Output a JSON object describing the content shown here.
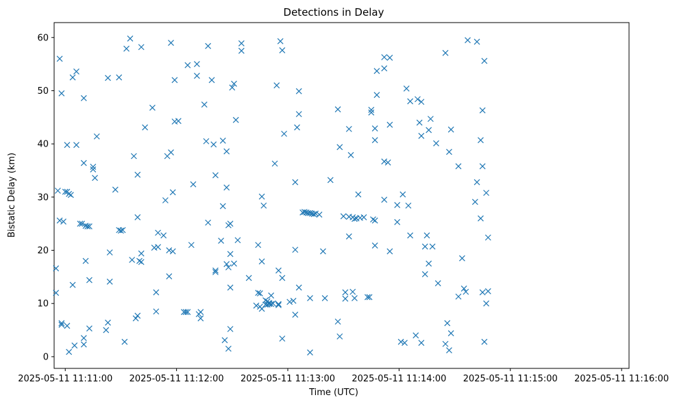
{
  "chart_data": {
    "type": "scatter",
    "title": "Detections in Delay",
    "xlabel": "Time (UTC)",
    "ylabel": "Bistatic Delay (km)",
    "marker": "x",
    "color": "#1f77b4",
    "grid": false,
    "xlim": [
      "2025-05-11 11:10:54",
      "2025-05-11 11:16:04"
    ],
    "ylim": [
      -2.2,
      62.8
    ],
    "x_ticks": [
      "2025-05-11 11:11:00",
      "2025-05-11 11:12:00",
      "2025-05-11 11:13:00",
      "2025-05-11 11:14:00",
      "2025-05-11 11:15:00",
      "2025-05-11 11:16:00"
    ],
    "y_ticks": [
      0,
      10,
      20,
      30,
      40,
      50,
      60
    ],
    "points": [
      [
        "2025-05-11 11:10:55",
        12.0
      ],
      [
        "2025-05-11 11:10:55",
        16.6
      ],
      [
        "2025-05-11 11:10:56",
        31.2
      ],
      [
        "2025-05-11 11:10:57",
        56.0
      ],
      [
        "2025-05-11 11:10:58",
        49.5
      ],
      [
        "2025-05-11 11:10:57",
        25.6
      ],
      [
        "2025-05-11 11:10:58",
        6.0
      ],
      [
        "2025-05-11 11:10:58",
        6.3
      ],
      [
        "2025-05-11 11:10:59",
        25.4
      ],
      [
        "2025-05-11 11:11:00",
        31.0
      ],
      [
        "2025-05-11 11:11:01",
        31.0
      ],
      [
        "2025-05-11 11:11:01",
        39.8
      ],
      [
        "2025-05-11 11:11:02",
        30.6
      ],
      [
        "2025-05-11 11:11:01",
        5.8
      ],
      [
        "2025-05-11 11:11:02",
        0.9
      ],
      [
        "2025-05-11 11:11:03",
        30.4
      ],
      [
        "2025-05-11 11:11:04",
        13.5
      ],
      [
        "2025-05-11 11:11:04",
        52.5
      ],
      [
        "2025-05-11 11:11:05",
        2.1
      ],
      [
        "2025-05-11 11:11:06",
        53.6
      ],
      [
        "2025-05-11 11:11:06",
        39.8
      ],
      [
        "2025-05-11 11:11:08",
        25.0
      ],
      [
        "2025-05-11 11:11:09",
        25.0
      ],
      [
        "2025-05-11 11:11:10",
        48.6
      ],
      [
        "2025-05-11 11:11:10",
        36.4
      ],
      [
        "2025-05-11 11:11:10",
        3.5
      ],
      [
        "2025-05-11 11:11:10",
        2.3
      ],
      [
        "2025-05-11 11:11:11",
        18.0
      ],
      [
        "2025-05-11 11:11:11",
        24.6
      ],
      [
        "2025-05-11 11:11:12",
        24.5
      ],
      [
        "2025-05-11 11:11:13",
        24.5
      ],
      [
        "2025-05-11 11:11:13",
        14.4
      ],
      [
        "2025-05-11 11:11:13",
        5.3
      ],
      [
        "2025-05-11 11:11:15",
        35.2
      ],
      [
        "2025-05-11 11:11:15",
        35.7
      ],
      [
        "2025-05-11 11:11:16",
        33.6
      ],
      [
        "2025-05-11 11:11:17",
        41.4
      ],
      [
        "2025-05-11 11:11:22",
        5.0
      ],
      [
        "2025-05-11 11:11:23",
        52.4
      ],
      [
        "2025-05-11 11:11:23",
        6.4
      ],
      [
        "2025-05-11 11:11:24",
        14.1
      ],
      [
        "2025-05-11 11:11:24",
        19.6
      ],
      [
        "2025-05-11 11:11:27",
        31.4
      ],
      [
        "2025-05-11 11:11:29",
        52.5
      ],
      [
        "2025-05-11 11:11:29",
        23.8
      ],
      [
        "2025-05-11 11:11:30",
        23.7
      ],
      [
        "2025-05-11 11:11:31",
        23.8
      ],
      [
        "2025-05-11 11:11:32",
        2.8
      ],
      [
        "2025-05-11 11:11:33",
        57.9
      ],
      [
        "2025-05-11 11:11:35",
        59.8
      ],
      [
        "2025-05-11 11:11:36",
        18.2
      ],
      [
        "2025-05-11 11:11:37",
        37.7
      ],
      [
        "2025-05-11 11:11:38",
        7.2
      ],
      [
        "2025-05-11 11:11:39",
        7.7
      ],
      [
        "2025-05-11 11:11:39",
        26.2
      ],
      [
        "2025-05-11 11:11:39",
        34.2
      ],
      [
        "2025-05-11 11:11:40",
        18.0
      ],
      [
        "2025-05-11 11:11:41",
        17.8
      ],
      [
        "2025-05-11 11:11:41",
        19.4
      ],
      [
        "2025-05-11 11:11:41",
        58.2
      ],
      [
        "2025-05-11 11:11:43",
        43.1
      ],
      [
        "2025-05-11 11:11:47",
        46.8
      ],
      [
        "2025-05-11 11:11:48",
        20.5
      ],
      [
        "2025-05-11 11:11:49",
        8.5
      ],
      [
        "2025-05-11 11:11:49",
        12.1
      ],
      [
        "2025-05-11 11:11:50",
        20.6
      ],
      [
        "2025-05-11 11:11:50",
        23.3
      ],
      [
        "2025-05-11 11:11:53",
        22.8
      ],
      [
        "2025-05-11 11:11:54",
        29.4
      ],
      [
        "2025-05-11 11:11:55",
        37.7
      ],
      [
        "2025-05-11 11:11:56",
        15.1
      ],
      [
        "2025-05-11 11:11:56",
        20.0
      ],
      [
        "2025-05-11 11:11:57",
        38.4
      ],
      [
        "2025-05-11 11:11:57",
        59.0
      ],
      [
        "2025-05-11 11:11:58",
        19.8
      ],
      [
        "2025-05-11 11:11:58",
        30.9
      ],
      [
        "2025-05-11 11:11:59",
        44.2
      ],
      [
        "2025-05-11 11:11:59",
        52.0
      ],
      [
        "2025-05-11 11:12:01",
        44.3
      ],
      [
        "2025-05-11 11:12:04",
        8.4
      ],
      [
        "2025-05-11 11:12:05",
        8.4
      ],
      [
        "2025-05-11 11:12:06",
        8.4
      ],
      [
        "2025-05-11 11:12:06",
        54.8
      ],
      [
        "2025-05-11 11:12:08",
        21.0
      ],
      [
        "2025-05-11 11:12:09",
        32.4
      ],
      [
        "2025-05-11 11:12:11",
        55.0
      ],
      [
        "2025-05-11 11:12:11",
        52.8
      ],
      [
        "2025-05-11 11:12:12",
        8.0
      ],
      [
        "2025-05-11 11:12:13",
        8.4
      ],
      [
        "2025-05-11 11:12:13",
        7.2
      ],
      [
        "2025-05-11 11:12:15",
        47.4
      ],
      [
        "2025-05-11 11:12:16",
        40.5
      ],
      [
        "2025-05-11 11:12:17",
        25.2
      ],
      [
        "2025-05-11 11:12:17",
        58.4
      ],
      [
        "2025-05-11 11:12:19",
        52.0
      ],
      [
        "2025-05-11 11:12:20",
        39.9
      ],
      [
        "2025-05-11 11:12:21",
        34.1
      ],
      [
        "2025-05-11 11:12:21",
        16.2
      ],
      [
        "2025-05-11 11:12:21",
        15.9
      ],
      [
        "2025-05-11 11:12:24",
        21.8
      ],
      [
        "2025-05-11 11:12:25",
        28.3
      ],
      [
        "2025-05-11 11:12:25",
        40.6
      ],
      [
        "2025-05-11 11:12:26",
        3.1
      ],
      [
        "2025-05-11 11:12:27",
        31.8
      ],
      [
        "2025-05-11 11:12:27",
        38.6
      ],
      [
        "2025-05-11 11:12:27",
        17.4
      ],
      [
        "2025-05-11 11:12:28",
        24.7
      ],
      [
        "2025-05-11 11:12:28",
        16.8
      ],
      [
        "2025-05-11 11:12:28",
        1.5
      ],
      [
        "2025-05-11 11:12:29",
        19.3
      ],
      [
        "2025-05-11 11:12:29",
        5.2
      ],
      [
        "2025-05-11 11:12:29",
        13.0
      ],
      [
        "2025-05-11 11:12:29",
        25.0
      ],
      [
        "2025-05-11 11:12:30",
        50.6
      ],
      [
        "2025-05-11 11:12:31",
        51.3
      ],
      [
        "2025-05-11 11:12:31",
        17.5
      ],
      [
        "2025-05-11 11:12:32",
        44.5
      ],
      [
        "2025-05-11 11:12:33",
        21.9
      ],
      [
        "2025-05-11 11:12:35",
        58.9
      ],
      [
        "2025-05-11 11:12:35",
        57.5
      ],
      [
        "2025-05-11 11:12:39",
        14.8
      ],
      [
        "2025-05-11 11:12:43",
        9.6
      ],
      [
        "2025-05-11 11:12:44",
        12.0
      ],
      [
        "2025-05-11 11:12:44",
        21.0
      ],
      [
        "2025-05-11 11:12:45",
        9.4
      ],
      [
        "2025-05-11 11:12:45",
        11.9
      ],
      [
        "2025-05-11 11:12:46",
        30.1
      ],
      [
        "2025-05-11 11:12:46",
        9.0
      ],
      [
        "2025-05-11 11:12:46",
        17.9
      ],
      [
        "2025-05-11 11:12:47",
        28.4
      ],
      [
        "2025-05-11 11:12:48",
        10.6
      ],
      [
        "2025-05-11 11:12:48",
        9.8
      ],
      [
        "2025-05-11 11:12:49",
        9.8
      ],
      [
        "2025-05-11 11:12:49",
        10.4
      ],
      [
        "2025-05-11 11:12:50",
        9.9
      ],
      [
        "2025-05-11 11:12:50",
        10.1
      ],
      [
        "2025-05-11 11:12:51",
        11.5
      ],
      [
        "2025-05-11 11:12:51",
        9.9
      ],
      [
        "2025-05-11 11:12:52",
        10.0
      ],
      [
        "2025-05-11 11:12:53",
        36.3
      ],
      [
        "2025-05-11 11:12:54",
        51.0
      ],
      [
        "2025-05-11 11:12:55",
        9.7
      ],
      [
        "2025-05-11 11:12:55",
        9.9
      ],
      [
        "2025-05-11 11:12:55",
        16.2
      ],
      [
        "2025-05-11 11:12:56",
        59.3
      ],
      [
        "2025-05-11 11:12:57",
        57.6
      ],
      [
        "2025-05-11 11:12:57",
        3.4
      ],
      [
        "2025-05-11 11:12:57",
        14.8
      ],
      [
        "2025-05-11 11:12:58",
        41.9
      ],
      [
        "2025-05-11 11:13:01",
        10.3
      ],
      [
        "2025-05-11 11:13:03",
        10.5
      ],
      [
        "2025-05-11 11:13:04",
        7.9
      ],
      [
        "2025-05-11 11:13:04",
        32.8
      ],
      [
        "2025-05-11 11:13:04",
        20.1
      ],
      [
        "2025-05-11 11:13:05",
        43.1
      ],
      [
        "2025-05-11 11:13:06",
        45.6
      ],
      [
        "2025-05-11 11:13:06",
        49.9
      ],
      [
        "2025-05-11 11:13:06",
        13.0
      ],
      [
        "2025-05-11 11:13:08",
        27.1
      ],
      [
        "2025-05-11 11:13:09",
        27.2
      ],
      [
        "2025-05-11 11:13:10",
        27.1
      ],
      [
        "2025-05-11 11:13:11",
        27.0
      ],
      [
        "2025-05-11 11:13:12",
        27.0
      ],
      [
        "2025-05-11 11:13:12",
        0.8
      ],
      [
        "2025-05-11 11:13:12",
        11.0
      ],
      [
        "2025-05-11 11:13:13",
        26.9
      ],
      [
        "2025-05-11 11:13:14",
        26.8
      ],
      [
        "2025-05-11 11:13:15",
        26.9
      ],
      [
        "2025-05-11 11:13:17",
        26.7
      ],
      [
        "2025-05-11 11:13:19",
        19.8
      ],
      [
        "2025-05-11 11:13:20",
        11.0
      ],
      [
        "2025-05-11 11:13:23",
        33.2
      ],
      [
        "2025-05-11 11:13:27",
        46.5
      ],
      [
        "2025-05-11 11:13:27",
        6.6
      ],
      [
        "2025-05-11 11:13:28",
        3.8
      ],
      [
        "2025-05-11 11:13:28",
        39.4
      ],
      [
        "2025-05-11 11:13:30",
        26.4
      ],
      [
        "2025-05-11 11:13:31",
        12.1
      ],
      [
        "2025-05-11 11:13:31",
        10.9
      ],
      [
        "2025-05-11 11:13:33",
        42.8
      ],
      [
        "2025-05-11 11:13:33",
        22.6
      ],
      [
        "2025-05-11 11:13:33",
        26.3
      ],
      [
        "2025-05-11 11:13:34",
        37.9
      ],
      [
        "2025-05-11 11:13:35",
        26.2
      ],
      [
        "2025-05-11 11:13:35",
        12.2
      ],
      [
        "2025-05-11 11:13:36",
        25.9
      ],
      [
        "2025-05-11 11:13:36",
        11.0
      ],
      [
        "2025-05-11 11:13:37",
        26.0
      ],
      [
        "2025-05-11 11:13:38",
        30.5
      ],
      [
        "2025-05-11 11:13:39",
        26.1
      ],
      [
        "2025-05-11 11:13:41",
        26.2
      ],
      [
        "2025-05-11 11:13:43",
        11.2
      ],
      [
        "2025-05-11 11:13:44",
        11.2
      ],
      [
        "2025-05-11 11:13:45",
        46.4
      ],
      [
        "2025-05-11 11:13:45",
        45.9
      ],
      [
        "2025-05-11 11:13:46",
        25.8
      ],
      [
        "2025-05-11 11:13:47",
        42.9
      ],
      [
        "2025-05-11 11:13:47",
        40.7
      ],
      [
        "2025-05-11 11:13:47",
        25.6
      ],
      [
        "2025-05-11 11:13:47",
        20.9
      ],
      [
        "2025-05-11 11:13:48",
        49.2
      ],
      [
        "2025-05-11 11:13:48",
        53.7
      ],
      [
        "2025-05-11 11:13:52",
        56.3
      ],
      [
        "2025-05-11 11:13:52",
        54.2
      ],
      [
        "2025-05-11 11:13:52",
        36.7
      ],
      [
        "2025-05-11 11:13:52",
        29.5
      ],
      [
        "2025-05-11 11:13:54",
        36.5
      ],
      [
        "2025-05-11 11:13:55",
        56.2
      ],
      [
        "2025-05-11 11:13:55",
        43.6
      ],
      [
        "2025-05-11 11:13:55",
        19.8
      ],
      [
        "2025-05-11 11:13:59",
        28.5
      ],
      [
        "2025-05-11 11:13:59",
        25.3
      ],
      [
        "2025-05-11 11:14:01",
        2.8
      ],
      [
        "2025-05-11 11:14:02",
        30.5
      ],
      [
        "2025-05-11 11:14:03",
        2.6
      ],
      [
        "2025-05-11 11:14:04",
        50.4
      ],
      [
        "2025-05-11 11:14:05",
        28.4
      ],
      [
        "2025-05-11 11:14:06",
        22.8
      ],
      [
        "2025-05-11 11:14:06",
        48.0
      ],
      [
        "2025-05-11 11:14:09",
        4.0
      ],
      [
        "2025-05-11 11:14:10",
        48.4
      ],
      [
        "2025-05-11 11:14:11",
        44.0
      ],
      [
        "2025-05-11 11:14:12",
        47.9
      ],
      [
        "2025-05-11 11:14:12",
        41.5
      ],
      [
        "2025-05-11 11:14:12",
        2.6
      ],
      [
        "2025-05-11 11:14:14",
        15.5
      ],
      [
        "2025-05-11 11:14:14",
        20.7
      ],
      [
        "2025-05-11 11:14:15",
        22.8
      ],
      [
        "2025-05-11 11:14:16",
        42.6
      ],
      [
        "2025-05-11 11:14:16",
        17.5
      ],
      [
        "2025-05-11 11:14:17",
        44.7
      ],
      [
        "2025-05-11 11:14:18",
        20.7
      ],
      [
        "2025-05-11 11:14:20",
        40.1
      ],
      [
        "2025-05-11 11:14:21",
        13.8
      ],
      [
        "2025-05-11 11:14:25",
        57.1
      ],
      [
        "2025-05-11 11:14:25",
        2.4
      ],
      [
        "2025-05-11 11:14:26",
        6.3
      ],
      [
        "2025-05-11 11:14:27",
        1.2
      ],
      [
        "2025-05-11 11:14:27",
        38.5
      ],
      [
        "2025-05-11 11:14:28",
        42.7
      ],
      [
        "2025-05-11 11:14:28",
        4.4
      ],
      [
        "2025-05-11 11:14:32",
        35.8
      ],
      [
        "2025-05-11 11:14:32",
        11.3
      ],
      [
        "2025-05-11 11:14:34",
        18.5
      ],
      [
        "2025-05-11 11:14:35",
        12.8
      ],
      [
        "2025-05-11 11:14:36",
        12.2
      ],
      [
        "2025-05-11 11:14:37",
        59.5
      ],
      [
        "2025-05-11 11:14:41",
        29.1
      ],
      [
        "2025-05-11 11:14:42",
        32.8
      ],
      [
        "2025-05-11 11:14:42",
        59.2
      ],
      [
        "2025-05-11 11:14:44",
        40.7
      ],
      [
        "2025-05-11 11:14:44",
        26.0
      ],
      [
        "2025-05-11 11:14:45",
        35.8
      ],
      [
        "2025-05-11 11:14:45",
        12.1
      ],
      [
        "2025-05-11 11:14:45",
        46.3
      ],
      [
        "2025-05-11 11:14:46",
        2.8
      ],
      [
        "2025-05-11 11:14:46",
        55.6
      ],
      [
        "2025-05-11 11:14:47",
        30.8
      ],
      [
        "2025-05-11 11:14:47",
        10.0
      ],
      [
        "2025-05-11 11:14:48",
        12.3
      ],
      [
        "2025-05-11 11:14:48",
        22.4
      ]
    ]
  }
}
